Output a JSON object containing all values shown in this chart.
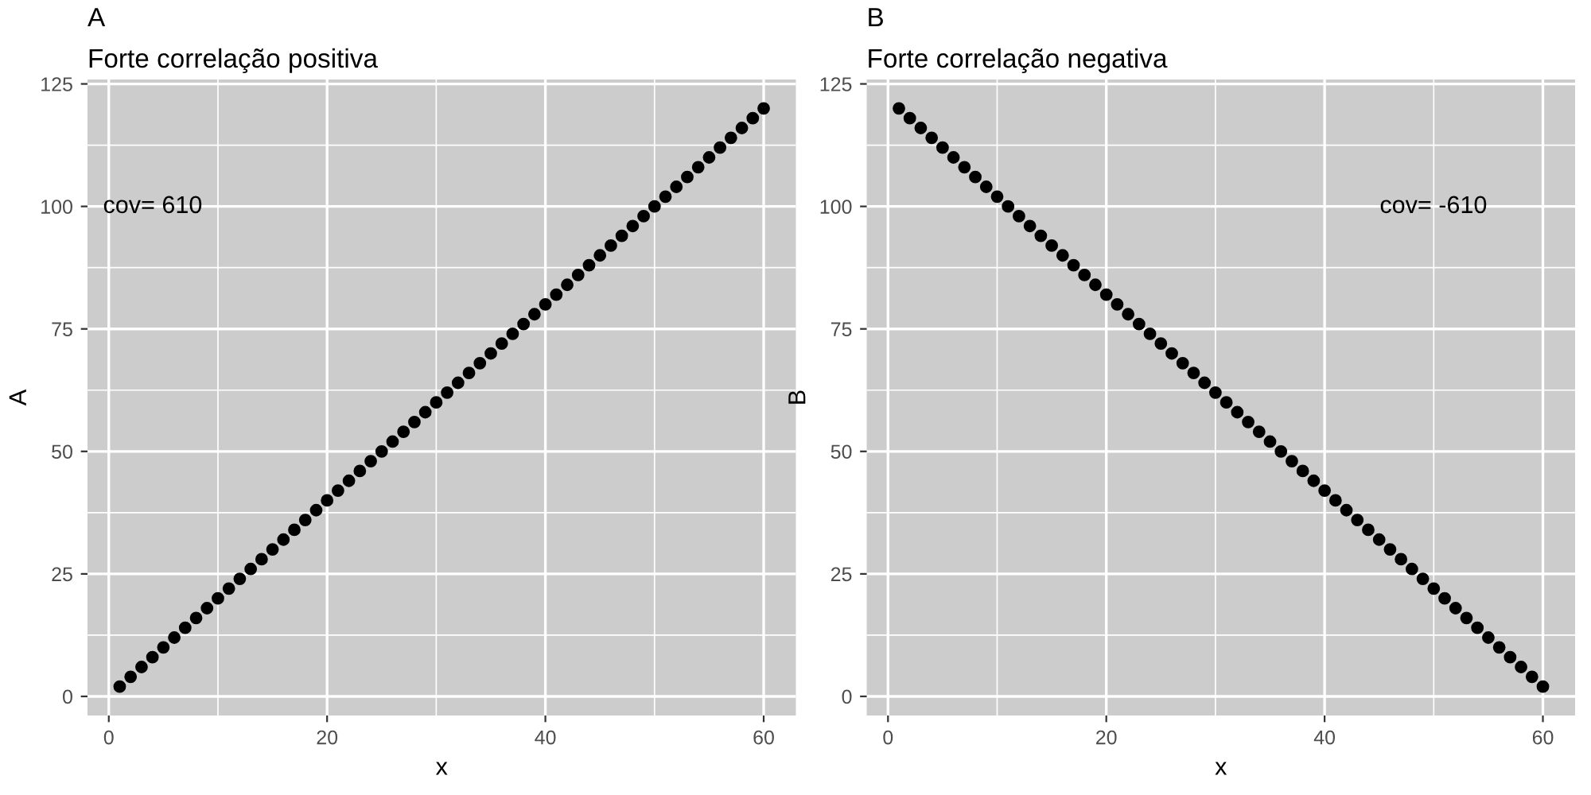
{
  "chart_data": [
    {
      "type": "scatter",
      "title": "A",
      "subtitle": "Forte correlação positiva",
      "xlabel": "x",
      "ylabel": "A",
      "x": [
        1,
        2,
        3,
        4,
        5,
        6,
        7,
        8,
        9,
        10,
        11,
        12,
        13,
        14,
        15,
        16,
        17,
        18,
        19,
        20,
        21,
        22,
        23,
        24,
        25,
        26,
        27,
        28,
        29,
        30,
        31,
        32,
        33,
        34,
        35,
        36,
        37,
        38,
        39,
        40,
        41,
        42,
        43,
        44,
        45,
        46,
        47,
        48,
        49,
        50,
        51,
        52,
        53,
        54,
        55,
        56,
        57,
        58,
        59,
        60
      ],
      "series": [
        {
          "color": "#000000",
          "values": [
            2,
            4,
            6,
            8,
            10,
            12,
            14,
            16,
            18,
            20,
            22,
            24,
            26,
            28,
            30,
            32,
            34,
            36,
            38,
            40,
            42,
            44,
            46,
            48,
            50,
            52,
            54,
            56,
            58,
            60,
            62,
            64,
            66,
            68,
            70,
            72,
            74,
            76,
            78,
            80,
            82,
            84,
            86,
            88,
            90,
            92,
            94,
            96,
            98,
            100,
            102,
            104,
            106,
            108,
            110,
            112,
            114,
            116,
            118,
            120
          ]
        }
      ],
      "xlim": [
        -1.95,
        62.95
      ],
      "xticks": [
        0,
        20,
        40,
        60
      ],
      "ylim": [
        -3.9,
        125.9
      ],
      "yticks": [
        0,
        25,
        50,
        75,
        100,
        125
      ],
      "annotations": [
        "cov= 610"
      ],
      "marker": "circle",
      "grid": true
    },
    {
      "type": "scatter",
      "title": "B",
      "subtitle": "Forte correlação negativa",
      "xlabel": "x",
      "ylabel": "B",
      "x": [
        1,
        2,
        3,
        4,
        5,
        6,
        7,
        8,
        9,
        10,
        11,
        12,
        13,
        14,
        15,
        16,
        17,
        18,
        19,
        20,
        21,
        22,
        23,
        24,
        25,
        26,
        27,
        28,
        29,
        30,
        31,
        32,
        33,
        34,
        35,
        36,
        37,
        38,
        39,
        40,
        41,
        42,
        43,
        44,
        45,
        46,
        47,
        48,
        49,
        50,
        51,
        52,
        53,
        54,
        55,
        56,
        57,
        58,
        59,
        60
      ],
      "series": [
        {
          "color": "#000000",
          "values": [
            120,
            118,
            116,
            114,
            112,
            110,
            108,
            106,
            104,
            102,
            100,
            98,
            96,
            94,
            92,
            90,
            88,
            86,
            84,
            82,
            80,
            78,
            76,
            74,
            72,
            70,
            68,
            66,
            64,
            62,
            60,
            58,
            56,
            54,
            52,
            50,
            48,
            46,
            44,
            42,
            40,
            38,
            36,
            34,
            32,
            30,
            28,
            26,
            24,
            22,
            20,
            18,
            16,
            14,
            12,
            10,
            8,
            6,
            4,
            2
          ]
        }
      ],
      "xlim": [
        -1.95,
        62.95
      ],
      "xticks": [
        0,
        20,
        40,
        60
      ],
      "ylim": [
        -3.9,
        125.9
      ],
      "yticks": [
        0,
        25,
        50,
        75,
        100,
        125
      ],
      "annotations": [
        "cov= -610"
      ],
      "marker": "circle",
      "grid": true
    }
  ]
}
